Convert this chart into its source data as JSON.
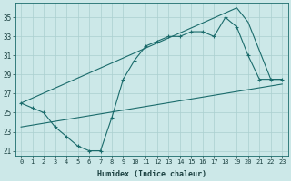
{
  "title": "",
  "xlabel": "Humidex (Indice chaleur)",
  "bg_color": "#cce8e8",
  "grid_color": "#aacfcf",
  "line_color": "#1a6b6b",
  "xlim": [
    -0.5,
    23.5
  ],
  "ylim": [
    20.5,
    36.5
  ],
  "yticks": [
    21,
    23,
    25,
    27,
    29,
    31,
    33,
    35
  ],
  "xticks": [
    0,
    1,
    2,
    3,
    4,
    5,
    6,
    7,
    8,
    9,
    10,
    11,
    12,
    13,
    14,
    15,
    16,
    17,
    18,
    19,
    20,
    21,
    22,
    23
  ],
  "line1_x": [
    0,
    1,
    2,
    3,
    4,
    5,
    6,
    7,
    8,
    9,
    10,
    11,
    12,
    13,
    14,
    15,
    16,
    17,
    18,
    19,
    20,
    21,
    22,
    23
  ],
  "line1_y": [
    26.0,
    25.5,
    25.0,
    23.5,
    22.5,
    21.5,
    21.0,
    21.0,
    24.5,
    28.5,
    30.5,
    32.0,
    32.5,
    33.0,
    33.0,
    33.5,
    33.5,
    33.0,
    35.0,
    34.0,
    31.0,
    28.5,
    28.5,
    28.5
  ],
  "line2_x": [
    0,
    19,
    20,
    22,
    23
  ],
  "line2_y": [
    26.0,
    36.0,
    34.5,
    28.5,
    28.5
  ],
  "line3_x": [
    0,
    23
  ],
  "line3_y": [
    23.5,
    28.0
  ]
}
